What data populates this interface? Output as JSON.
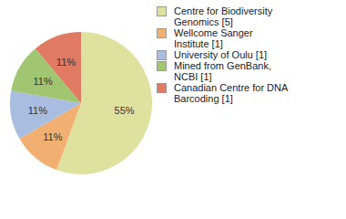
{
  "chart_data": {
    "type": "pie",
    "categories": [
      "Centre for Biodiversity Genomics [5]",
      "Wellcome Sanger Institute [1]",
      "University of Oulu [1]",
      "Mined from GenBank, NCBI [1]",
      "Canadian Centre for DNA Barcoding [1]"
    ],
    "values": [
      55,
      11,
      11,
      11,
      11
    ],
    "value_labels": [
      "55%",
      "11%",
      "11%",
      "11%",
      "11%"
    ],
    "colors": [
      "#dfe29e",
      "#f1b071",
      "#a9bde0",
      "#a1c672",
      "#e07a62"
    ],
    "data_labels": true,
    "legend": "upper right"
  }
}
